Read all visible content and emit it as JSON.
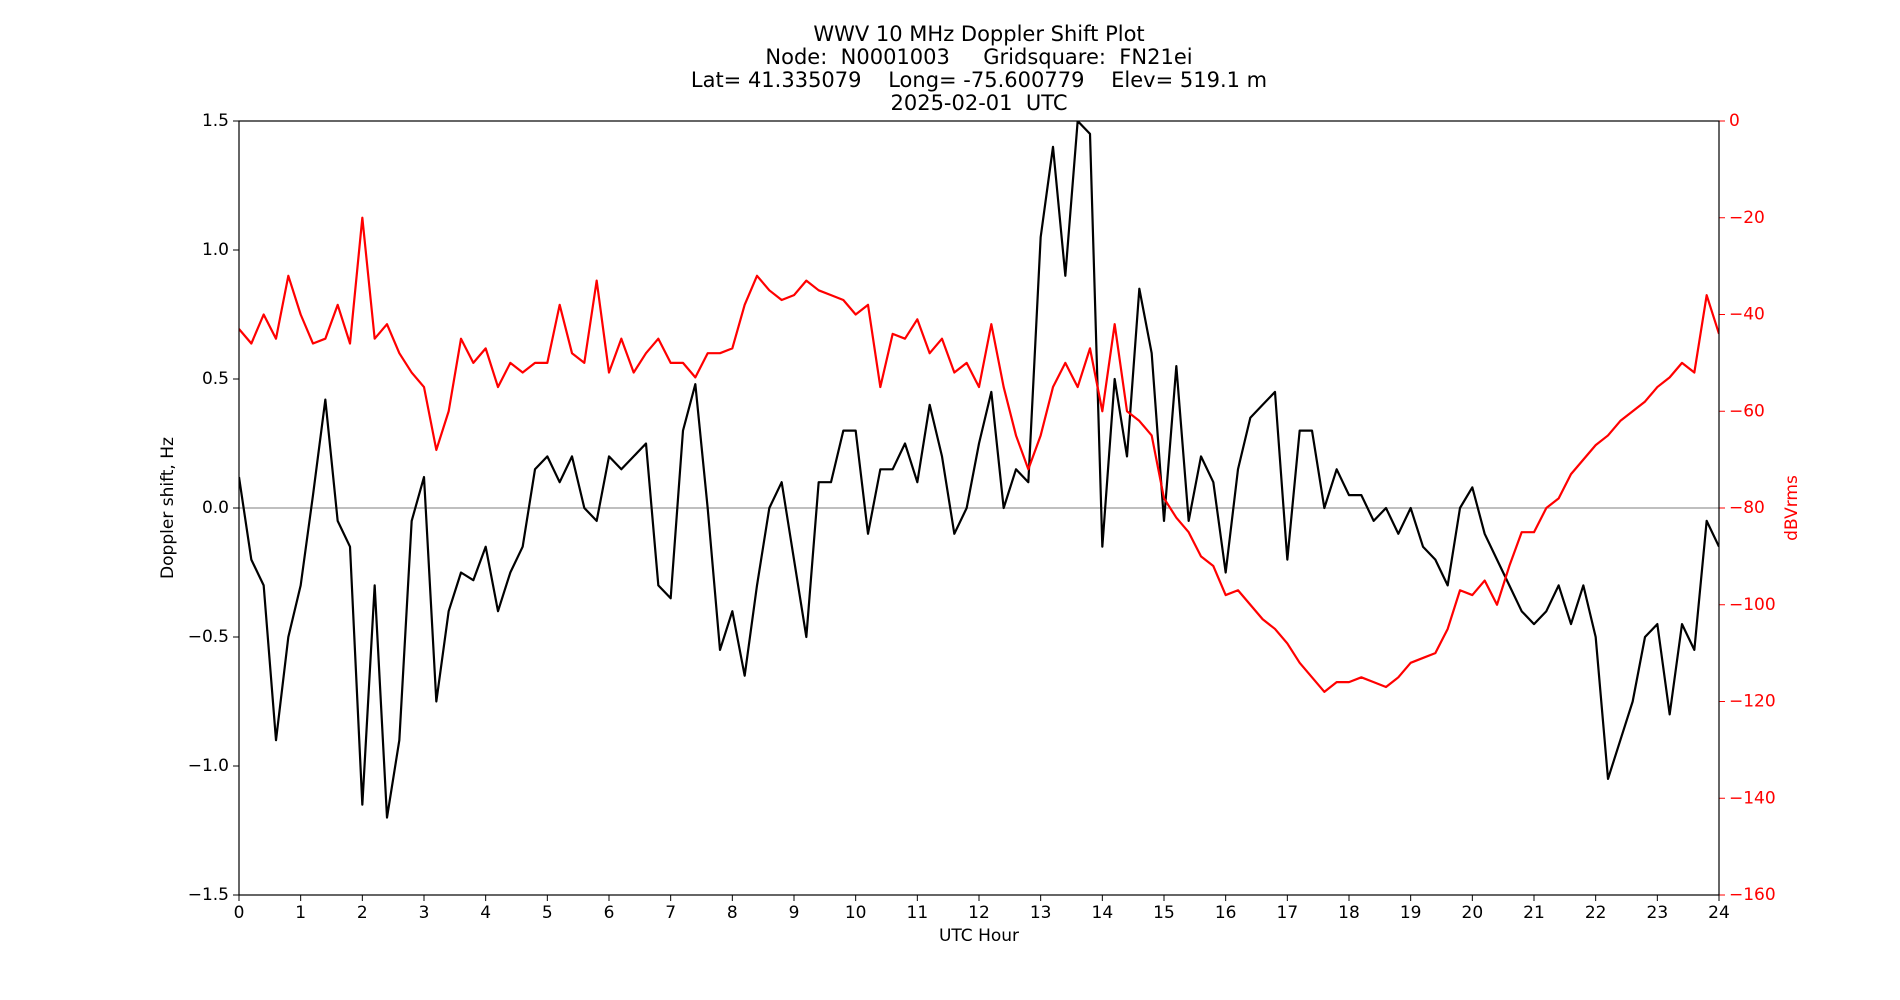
{
  "chart_data": {
    "type": "line",
    "title": "WWV 10 MHz Doppler Shift Plot",
    "subtitle_lines": [
      "Node:  N0001003     Gridsquare:  FN21ei",
      "Lat= 41.335079    Long= -75.600779    Elev= 519.1 m",
      "2025-02-01  UTC"
    ],
    "x_label": "UTC Hour",
    "y_label": "Doppler shift, Hz",
    "y2_label": "dBVrms",
    "y2_color": "#ff0000",
    "reference_line": 0,
    "x": [
      0,
      0.2,
      0.4,
      0.6,
      0.8,
      1,
      1.2,
      1.4,
      1.6,
      1.8,
      2,
      2.2,
      2.4,
      2.6,
      2.8,
      3,
      3.2,
      3.4,
      3.6,
      3.8,
      4,
      4.2,
      4.4,
      4.6,
      4.8,
      5,
      5.2,
      5.4,
      5.6,
      5.8,
      6,
      6.2,
      6.4,
      6.6,
      6.8,
      7,
      7.2,
      7.4,
      7.6,
      7.8,
      8,
      8.2,
      8.4,
      8.6,
      8.8,
      9,
      9.2,
      9.4,
      9.6,
      9.8,
      10,
      10.2,
      10.4,
      10.6,
      10.8,
      11,
      11.2,
      11.4,
      11.6,
      11.8,
      12,
      12.2,
      12.4,
      12.6,
      12.8,
      13,
      13.2,
      13.4,
      13.6,
      13.8,
      14,
      14.2,
      14.4,
      14.6,
      14.8,
      15,
      15.2,
      15.4,
      15.6,
      15.8,
      16,
      16.2,
      16.4,
      16.6,
      16.8,
      17,
      17.2,
      17.4,
      17.6,
      17.8,
      18,
      18.2,
      18.4,
      18.6,
      18.8,
      19,
      19.2,
      19.4,
      19.6,
      19.8,
      20,
      20.2,
      20.4,
      20.6,
      20.8,
      21,
      21.2,
      21.4,
      21.6,
      21.8,
      22,
      22.2,
      22.4,
      22.6,
      22.8,
      23,
      23.2,
      23.4,
      23.6,
      23.8,
      24
    ],
    "series": [
      {
        "name": "Doppler shift",
        "color": "#000000",
        "values": [
          0.12,
          -0.2,
          -0.3,
          -0.9,
          -0.5,
          -0.3,
          0.05,
          0.42,
          -0.05,
          -0.15,
          -1.15,
          -0.3,
          -1.2,
          -0.9,
          -0.05,
          0.12,
          -0.75,
          -0.4,
          -0.25,
          -0.28,
          -0.15,
          -0.4,
          -0.25,
          -0.15,
          0.15,
          0.2,
          0.1,
          0.2,
          0.0,
          -0.05,
          0.2,
          0.15,
          0.2,
          0.25,
          -0.3,
          -0.35,
          0.3,
          0.48,
          0.0,
          -0.55,
          -0.4,
          -0.65,
          -0.3,
          0.0,
          0.1,
          -0.2,
          -0.5,
          0.1,
          0.1,
          0.3,
          0.3,
          -0.1,
          0.15,
          0.15,
          0.25,
          0.1,
          0.4,
          0.2,
          -0.1,
          0.0,
          0.25,
          0.45,
          0.0,
          0.15,
          0.1,
          1.05,
          1.4,
          0.9,
          1.5,
          1.45,
          -0.15,
          0.5,
          0.2,
          0.85,
          0.6,
          -0.05,
          0.55,
          -0.05,
          0.2,
          0.1,
          -0.25,
          0.15,
          0.35,
          0.4,
          0.45,
          -0.2,
          0.3,
          0.3,
          0.0,
          0.15,
          0.05,
          0.05,
          -0.05,
          0.0,
          -0.1,
          0.0,
          -0.15,
          -0.2,
          -0.3,
          0.0,
          0.08,
          -0.1,
          -0.2,
          -0.3,
          -0.4,
          -0.45,
          -0.4,
          -0.3,
          -0.45,
          -0.3,
          -0.5,
          -1.05,
          -0.9,
          -0.75,
          -0.5,
          -0.45,
          -0.8,
          -0.45,
          -0.55,
          -0.05,
          -0.15
        ]
      },
      {
        "name": "dBVrms",
        "color": "#ff0000",
        "axis": "y2",
        "values": [
          -43,
          -46,
          -40,
          -45,
          -32,
          -40,
          -46,
          -45,
          -38,
          -46,
          -20,
          -45,
          -42,
          -48,
          -52,
          -55,
          -68,
          -60,
          -45,
          -50,
          -47,
          -55,
          -50,
          -52,
          -50,
          -50,
          -38,
          -48,
          -50,
          -33,
          -52,
          -45,
          -52,
          -48,
          -45,
          -50,
          -50,
          -53,
          -48,
          -48,
          -47,
          -38,
          -32,
          -35,
          -37,
          -36,
          -33,
          -35,
          -36,
          -37,
          -40,
          -38,
          -55,
          -44,
          -45,
          -41,
          -48,
          -45,
          -52,
          -50,
          -55,
          -42,
          -55,
          -65,
          -72,
          -65,
          -55,
          -50,
          -55,
          -47,
          -60,
          -42,
          -60,
          -62,
          -65,
          -78,
          -82,
          -85,
          -90,
          -92,
          -98,
          -97,
          -100,
          -103,
          -105,
          -108,
          -112,
          -115,
          -118,
          -116,
          -116,
          -115,
          -116,
          -117,
          -115,
          -112,
          -111,
          -110,
          -105,
          -97,
          -98,
          -95,
          -100,
          -92,
          -85,
          -85,
          -80,
          -78,
          -73,
          -70,
          -67,
          -65,
          -62,
          -60,
          -58,
          -55,
          -53,
          -50,
          -52,
          -36,
          -44
        ]
      }
    ],
    "xlim": [
      0,
      24
    ],
    "xticks": [
      0,
      1,
      2,
      3,
      4,
      5,
      6,
      7,
      8,
      9,
      10,
      11,
      12,
      13,
      14,
      15,
      16,
      17,
      18,
      19,
      20,
      21,
      22,
      23,
      24
    ],
    "ylim": [
      -1.5,
      1.5
    ],
    "yticks": [
      {
        "value": -1.5,
        "label": "−1.5"
      },
      {
        "value": -1.0,
        "label": "−1.0"
      },
      {
        "value": -0.5,
        "label": "−0.5"
      },
      {
        "value": 0,
        "label": "0.0"
      },
      {
        "value": 0.5,
        "label": "0.5"
      },
      {
        "value": 1.0,
        "label": "1.0"
      },
      {
        "value": 1.5,
        "label": "1.5"
      }
    ],
    "y2lim": [
      -160,
      0
    ],
    "y2ticks": [
      {
        "value": -160,
        "label": "−160"
      },
      {
        "value": -140,
        "label": "−140"
      },
      {
        "value": -120,
        "label": "−120"
      },
      {
        "value": -100,
        "label": "−100"
      },
      {
        "value": -80,
        "label": "−80"
      },
      {
        "value": -60,
        "label": "−60"
      },
      {
        "value": -40,
        "label": "−40"
      },
      {
        "value": -20,
        "label": "−20"
      },
      0
    ]
  }
}
